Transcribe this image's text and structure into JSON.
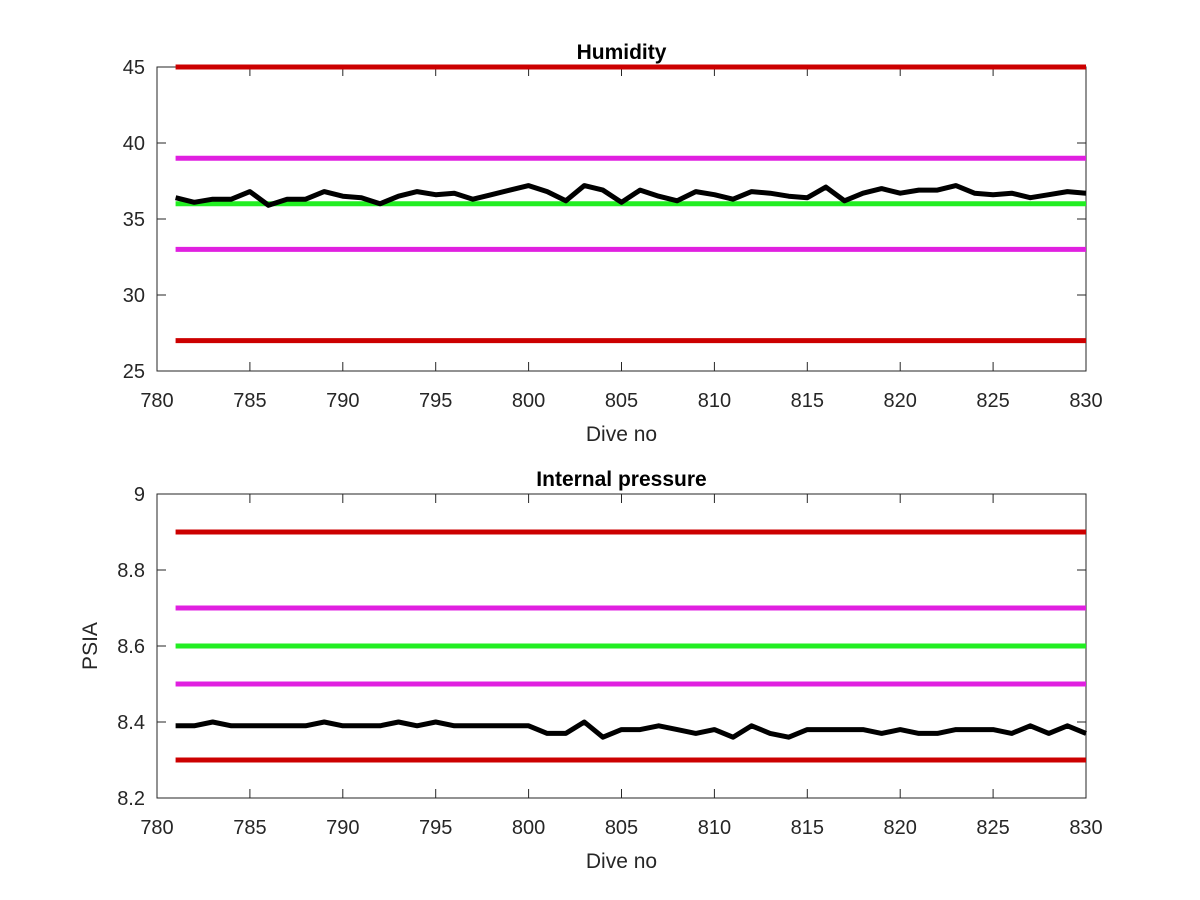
{
  "chart_data": [
    {
      "type": "line",
      "title": "Humidity",
      "xlabel": "Dive no",
      "ylabel": "",
      "xlim": [
        780,
        830
      ],
      "ylim": [
        25,
        45
      ],
      "xticks": [
        780,
        785,
        790,
        795,
        800,
        805,
        810,
        815,
        820,
        825,
        830
      ],
      "yticks": [
        25,
        30,
        35,
        40,
        45
      ],
      "grid": false,
      "legend": "none",
      "reference_lines": [
        {
          "y": 45,
          "color": "#cc0000"
        },
        {
          "y": 39,
          "color": "#e020e0"
        },
        {
          "y": 36,
          "color": "#22ee22"
        },
        {
          "y": 33,
          "color": "#e020e0"
        },
        {
          "y": 27,
          "color": "#cc0000"
        }
      ],
      "series": [
        {
          "color": "#000000",
          "x": [
            781,
            782,
            783,
            784,
            785,
            786,
            787,
            788,
            789,
            790,
            791,
            792,
            793,
            794,
            795,
            796,
            797,
            798,
            799,
            800,
            801,
            802,
            803,
            804,
            805,
            806,
            807,
            808,
            809,
            810,
            811,
            812,
            813,
            814,
            815,
            816,
            817,
            818,
            819,
            820,
            821,
            822,
            823,
            824,
            825,
            826,
            827,
            828,
            829,
            830
          ],
          "values": [
            36.4,
            36.1,
            36.3,
            36.3,
            36.8,
            35.9,
            36.3,
            36.3,
            36.8,
            36.5,
            36.4,
            36.0,
            36.5,
            36.8,
            36.6,
            36.7,
            36.3,
            36.6,
            36.9,
            37.2,
            36.8,
            36.2,
            37.2,
            36.9,
            36.1,
            36.9,
            36.5,
            36.2,
            36.8,
            36.6,
            36.3,
            36.8,
            36.7,
            36.5,
            36.4,
            37.1,
            36.2,
            36.7,
            37.0,
            36.7,
            36.9,
            36.9,
            37.2,
            36.7,
            36.6,
            36.7,
            36.4,
            36.6,
            36.8,
            36.7
          ]
        }
      ]
    },
    {
      "type": "line",
      "title": "Internal pressure",
      "xlabel": "Dive no",
      "ylabel": "PSIA",
      "xlim": [
        780,
        830
      ],
      "ylim": [
        8.2,
        9.0
      ],
      "xticks": [
        780,
        785,
        790,
        795,
        800,
        805,
        810,
        815,
        820,
        825,
        830
      ],
      "yticks": [
        "8.2",
        "8.4",
        "8.6",
        "8.8",
        "9"
      ],
      "grid": false,
      "legend": "none",
      "reference_lines": [
        {
          "y": 8.9,
          "color": "#cc0000"
        },
        {
          "y": 8.7,
          "color": "#e020e0"
        },
        {
          "y": 8.6,
          "color": "#22ee22"
        },
        {
          "y": 8.5,
          "color": "#e020e0"
        },
        {
          "y": 8.3,
          "color": "#cc0000"
        }
      ],
      "series": [
        {
          "color": "#000000",
          "x": [
            781,
            782,
            783,
            784,
            785,
            786,
            787,
            788,
            789,
            790,
            791,
            792,
            793,
            794,
            795,
            796,
            797,
            798,
            799,
            800,
            801,
            802,
            803,
            804,
            805,
            806,
            807,
            808,
            809,
            810,
            811,
            812,
            813,
            814,
            815,
            816,
            817,
            818,
            819,
            820,
            821,
            822,
            823,
            824,
            825,
            826,
            827,
            828,
            829,
            830
          ],
          "values": [
            8.39,
            8.39,
            8.4,
            8.39,
            8.39,
            8.39,
            8.39,
            8.39,
            8.4,
            8.39,
            8.39,
            8.39,
            8.4,
            8.39,
            8.4,
            8.39,
            8.39,
            8.39,
            8.39,
            8.39,
            8.37,
            8.37,
            8.4,
            8.36,
            8.38,
            8.38,
            8.39,
            8.38,
            8.37,
            8.38,
            8.36,
            8.39,
            8.37,
            8.36,
            8.38,
            8.38,
            8.38,
            8.38,
            8.37,
            8.38,
            8.37,
            8.37,
            8.38,
            8.38,
            8.38,
            8.37,
            8.39,
            8.37,
            8.39,
            8.37
          ]
        }
      ]
    }
  ]
}
